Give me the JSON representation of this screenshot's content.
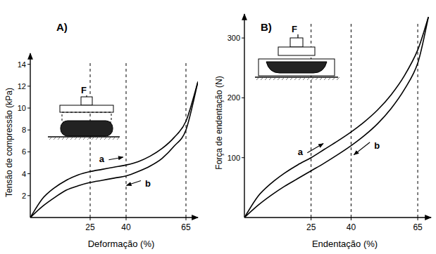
{
  "chart_data": [
    {
      "type": "line",
      "title": "A)",
      "annotation": "F",
      "x_label": "Deformação (%)",
      "y_label": "Tensão de compressão (kPa)",
      "x": [
        0,
        5,
        10,
        15,
        20,
        25,
        30,
        35,
        40,
        45,
        50,
        55,
        60,
        65,
        70
      ],
      "series": [
        {
          "name": "a",
          "color": "#000000",
          "values": [
            0,
            1.7,
            2.7,
            3.4,
            3.9,
            4.2,
            4.4,
            4.6,
            4.8,
            5.1,
            5.6,
            6.3,
            7.3,
            8.8,
            12.4
          ]
        },
        {
          "name": "b",
          "color": "#000000",
          "values": [
            0,
            1.0,
            1.8,
            2.5,
            2.9,
            3.2,
            3.4,
            3.6,
            3.8,
            4.2,
            4.7,
            5.4,
            6.5,
            8.0,
            12.4
          ]
        }
      ],
      "xlim": [
        0,
        70
      ],
      "ylim": [
        0,
        15
      ],
      "xticks": [
        25,
        40,
        65
      ],
      "yticks": [
        2,
        4,
        6,
        8,
        10,
        12,
        14
      ],
      "grid": true
    },
    {
      "type": "line",
      "title": "B)",
      "annotation": "F",
      "x_label": "Endentação (%)",
      "y_label": "Força de endentação (N)",
      "x": [
        0,
        5,
        10,
        15,
        20,
        25,
        30,
        35,
        40,
        45,
        50,
        55,
        60,
        65,
        69
      ],
      "series": [
        {
          "name": "a",
          "color": "#000000",
          "values": [
            0,
            35,
            57,
            74,
            88,
            100,
            114,
            128,
            143,
            160,
            180,
            205,
            237,
            280,
            335
          ]
        },
        {
          "name": "b",
          "color": "#000000",
          "values": [
            0,
            20,
            37,
            52,
            65,
            78,
            91,
            105,
            120,
            137,
            157,
            182,
            214,
            258,
            335
          ]
        }
      ],
      "xlim": [
        0,
        70
      ],
      "ylim": [
        0,
        340
      ],
      "xticks": [
        25,
        40,
        65
      ],
      "yticks": [
        100,
        200,
        300
      ],
      "grid": true
    }
  ]
}
